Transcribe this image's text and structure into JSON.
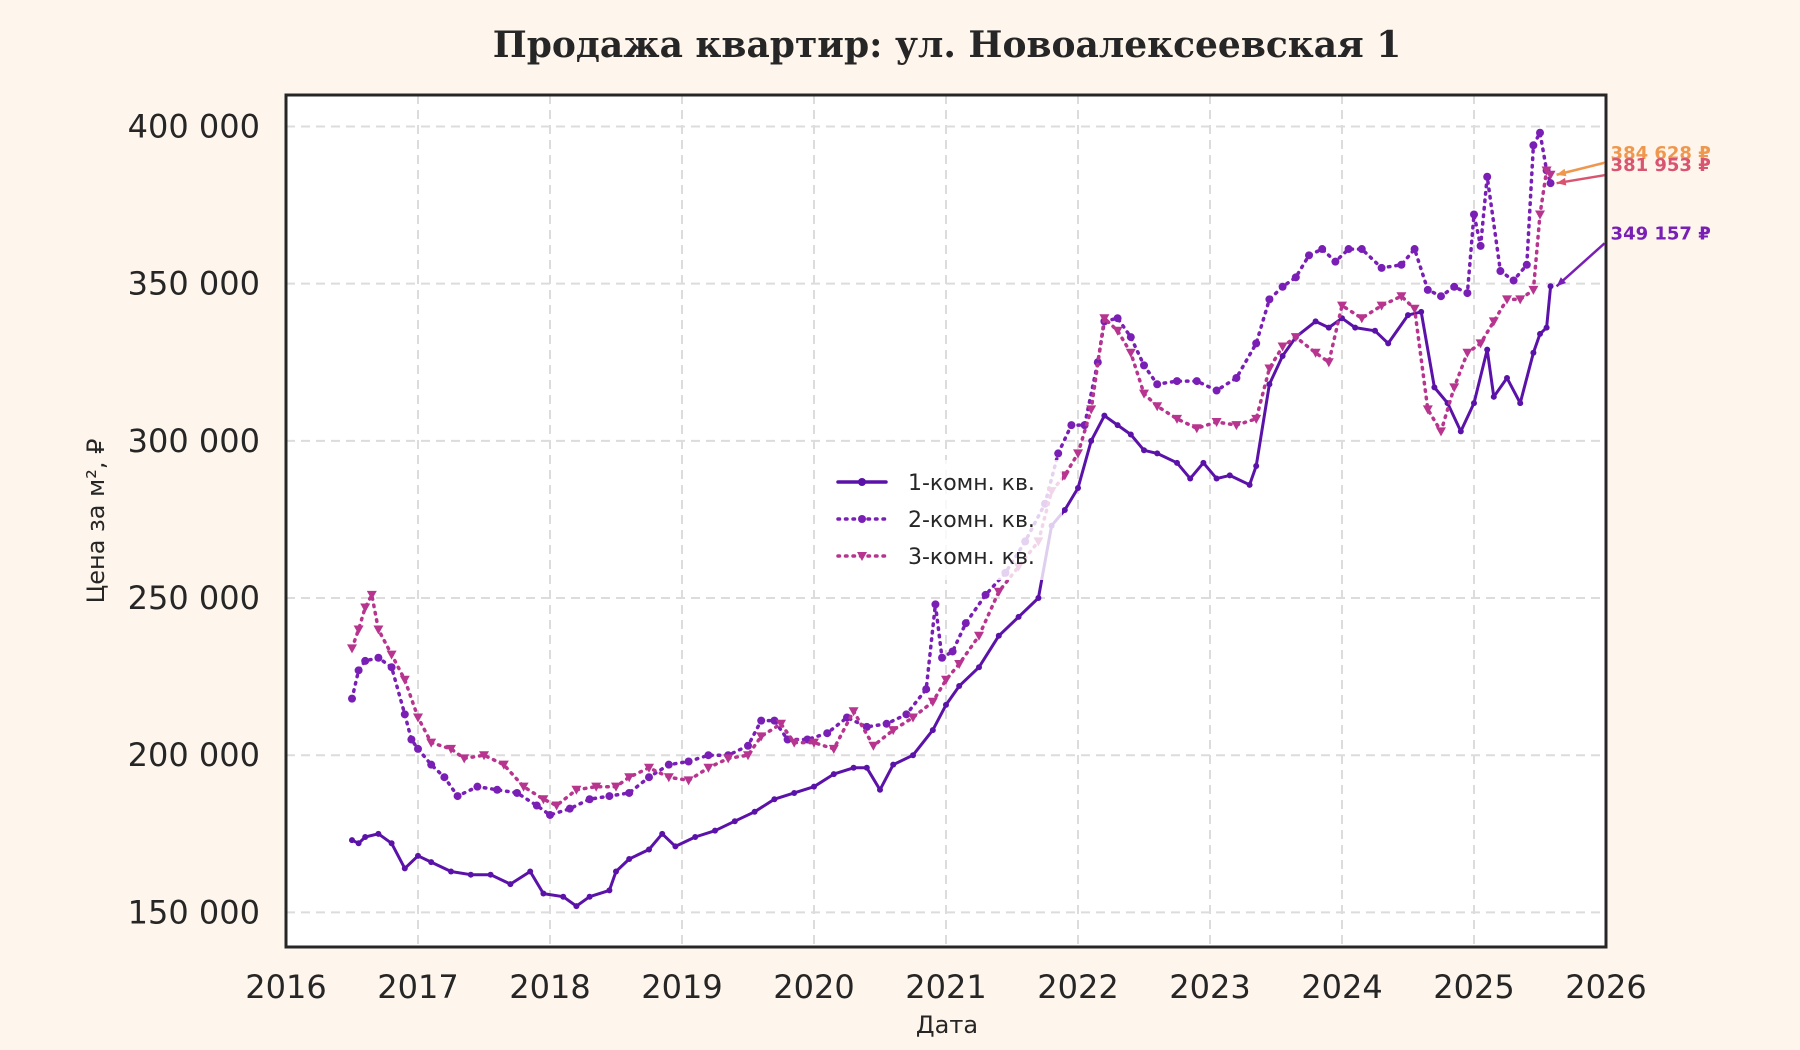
{
  "chart_data": {
    "type": "line",
    "title": "Продажа квартир: ул. Новоалексеевская 1",
    "xlabel": "Дата",
    "ylabel": "Цена за м², ₽",
    "xlim": [
      2016,
      2026
    ],
    "ylim": [
      139000,
      410000
    ],
    "x_ticks": [
      2016,
      2017,
      2018,
      2019,
      2020,
      2021,
      2022,
      2023,
      2024,
      2025,
      2026
    ],
    "x_tick_labels": [
      "2016",
      "2017",
      "2018",
      "2019",
      "2020",
      "2021",
      "2022",
      "2023",
      "2024",
      "2025",
      "2026"
    ],
    "y_ticks": [
      150000,
      200000,
      250000,
      300000,
      350000,
      400000
    ],
    "y_tick_labels": [
      "150 000",
      "200 000",
      "250 000",
      "300 000",
      "350 000",
      "400 000"
    ],
    "grid": true,
    "legend_position": "center",
    "series": [
      {
        "name": "1-комн. кв.",
        "color": "#5b12a8",
        "line_style": "solid",
        "marker": "circle",
        "points": [
          [
            2016.5,
            173000
          ],
          [
            2016.55,
            172000
          ],
          [
            2016.6,
            174000
          ],
          [
            2016.7,
            175000
          ],
          [
            2016.8,
            172000
          ],
          [
            2016.9,
            164000
          ],
          [
            2017.0,
            168000
          ],
          [
            2017.1,
            166000
          ],
          [
            2017.25,
            163000
          ],
          [
            2017.4,
            162000
          ],
          [
            2017.55,
            162000
          ],
          [
            2017.7,
            159000
          ],
          [
            2017.85,
            163000
          ],
          [
            2017.95,
            156000
          ],
          [
            2018.1,
            155000
          ],
          [
            2018.2,
            152000
          ],
          [
            2018.3,
            155000
          ],
          [
            2018.45,
            157000
          ],
          [
            2018.5,
            163000
          ],
          [
            2018.6,
            167000
          ],
          [
            2018.75,
            170000
          ],
          [
            2018.85,
            175000
          ],
          [
            2018.95,
            171000
          ],
          [
            2019.1,
            174000
          ],
          [
            2019.25,
            176000
          ],
          [
            2019.4,
            179000
          ],
          [
            2019.55,
            182000
          ],
          [
            2019.7,
            186000
          ],
          [
            2019.85,
            188000
          ],
          [
            2020.0,
            190000
          ],
          [
            2020.15,
            194000
          ],
          [
            2020.3,
            196000
          ],
          [
            2020.4,
            196000
          ],
          [
            2020.5,
            189000
          ],
          [
            2020.6,
            197000
          ],
          [
            2020.75,
            200000
          ],
          [
            2020.9,
            208000
          ],
          [
            2021.0,
            216000
          ],
          [
            2021.1,
            222000
          ],
          [
            2021.25,
            228000
          ],
          [
            2021.4,
            238000
          ],
          [
            2021.55,
            244000
          ],
          [
            2021.7,
            250000
          ],
          [
            2021.8,
            273000
          ],
          [
            2021.9,
            278000
          ],
          [
            2022.0,
            285000
          ],
          [
            2022.1,
            300000
          ],
          [
            2022.2,
            308000
          ],
          [
            2022.3,
            305000
          ],
          [
            2022.4,
            302000
          ],
          [
            2022.5,
            297000
          ],
          [
            2022.6,
            296000
          ],
          [
            2022.75,
            293000
          ],
          [
            2022.85,
            288000
          ],
          [
            2022.95,
            293000
          ],
          [
            2023.05,
            288000
          ],
          [
            2023.15,
            289000
          ],
          [
            2023.3,
            286000
          ],
          [
            2023.35,
            292000
          ],
          [
            2023.45,
            318000
          ],
          [
            2023.55,
            327000
          ],
          [
            2023.65,
            333000
          ],
          [
            2023.8,
            338000
          ],
          [
            2023.9,
            336000
          ],
          [
            2024.0,
            339000
          ],
          [
            2024.1,
            336000
          ],
          [
            2024.25,
            335000
          ],
          [
            2024.35,
            331000
          ],
          [
            2024.5,
            340000
          ],
          [
            2024.6,
            341000
          ],
          [
            2024.7,
            317000
          ],
          [
            2024.8,
            312000
          ],
          [
            2024.9,
            303000
          ],
          [
            2025.0,
            312000
          ],
          [
            2025.1,
            329000
          ],
          [
            2025.15,
            314000
          ],
          [
            2025.25,
            320000
          ],
          [
            2025.35,
            312000
          ],
          [
            2025.45,
            328000
          ],
          [
            2025.5,
            334000
          ],
          [
            2025.55,
            336000
          ],
          [
            2025.58,
            349157
          ]
        ]
      },
      {
        "name": "2-комн. кв.",
        "color": "#7a1fb5",
        "line_style": "dotted",
        "marker": "circle",
        "points": [
          [
            2016.5,
            218000
          ],
          [
            2016.55,
            227000
          ],
          [
            2016.6,
            230000
          ],
          [
            2016.7,
            231000
          ],
          [
            2016.8,
            228000
          ],
          [
            2016.9,
            213000
          ],
          [
            2016.95,
            205000
          ],
          [
            2017.0,
            202000
          ],
          [
            2017.1,
            197000
          ],
          [
            2017.2,
            193000
          ],
          [
            2017.3,
            187000
          ],
          [
            2017.45,
            190000
          ],
          [
            2017.6,
            189000
          ],
          [
            2017.75,
            188000
          ],
          [
            2017.9,
            184000
          ],
          [
            2018.0,
            181000
          ],
          [
            2018.15,
            183000
          ],
          [
            2018.3,
            186000
          ],
          [
            2018.45,
            187000
          ],
          [
            2018.6,
            188000
          ],
          [
            2018.75,
            193000
          ],
          [
            2018.9,
            197000
          ],
          [
            2019.05,
            198000
          ],
          [
            2019.2,
            200000
          ],
          [
            2019.35,
            200000
          ],
          [
            2019.5,
            203000
          ],
          [
            2019.6,
            211000
          ],
          [
            2019.7,
            211000
          ],
          [
            2019.8,
            205000
          ],
          [
            2019.95,
            205000
          ],
          [
            2020.1,
            207000
          ],
          [
            2020.25,
            212000
          ],
          [
            2020.4,
            209000
          ],
          [
            2020.55,
            210000
          ],
          [
            2020.7,
            213000
          ],
          [
            2020.85,
            221000
          ],
          [
            2020.92,
            248000
          ],
          [
            2020.97,
            231000
          ],
          [
            2021.05,
            233000
          ],
          [
            2021.15,
            242000
          ],
          [
            2021.3,
            251000
          ],
          [
            2021.45,
            258000
          ],
          [
            2021.6,
            268000
          ],
          [
            2021.75,
            280000
          ],
          [
            2021.85,
            296000
          ],
          [
            2021.95,
            305000
          ],
          [
            2022.05,
            305000
          ],
          [
            2022.15,
            325000
          ],
          [
            2022.2,
            338000
          ],
          [
            2022.3,
            339000
          ],
          [
            2022.4,
            333000
          ],
          [
            2022.5,
            324000
          ],
          [
            2022.6,
            318000
          ],
          [
            2022.75,
            319000
          ],
          [
            2022.9,
            319000
          ],
          [
            2023.05,
            316000
          ],
          [
            2023.2,
            320000
          ],
          [
            2023.35,
            331000
          ],
          [
            2023.45,
            345000
          ],
          [
            2023.55,
            349000
          ],
          [
            2023.65,
            352000
          ],
          [
            2023.75,
            359000
          ],
          [
            2023.85,
            361000
          ],
          [
            2023.95,
            357000
          ],
          [
            2024.05,
            361000
          ],
          [
            2024.15,
            361000
          ],
          [
            2024.3,
            355000
          ],
          [
            2024.45,
            356000
          ],
          [
            2024.55,
            361000
          ],
          [
            2024.65,
            348000
          ],
          [
            2024.75,
            346000
          ],
          [
            2024.85,
            349000
          ],
          [
            2024.95,
            347000
          ],
          [
            2025.0,
            372000
          ],
          [
            2025.05,
            362000
          ],
          [
            2025.1,
            384000
          ],
          [
            2025.2,
            354000
          ],
          [
            2025.3,
            351000
          ],
          [
            2025.4,
            356000
          ],
          [
            2025.45,
            394000
          ],
          [
            2025.5,
            398000
          ],
          [
            2025.55,
            386000
          ],
          [
            2025.58,
            381953
          ]
        ]
      },
      {
        "name": "3-комн. кв.",
        "color": "#b8358f",
        "line_style": "dotted",
        "marker": "triangle-down",
        "points": [
          [
            2016.5,
            234000
          ],
          [
            2016.55,
            240000
          ],
          [
            2016.6,
            247000
          ],
          [
            2016.65,
            251000
          ],
          [
            2016.7,
            240000
          ],
          [
            2016.8,
            232000
          ],
          [
            2016.9,
            224000
          ],
          [
            2017.0,
            212000
          ],
          [
            2017.1,
            204000
          ],
          [
            2017.25,
            202000
          ],
          [
            2017.35,
            199000
          ],
          [
            2017.5,
            200000
          ],
          [
            2017.65,
            197000
          ],
          [
            2017.8,
            190000
          ],
          [
            2017.95,
            186000
          ],
          [
            2018.05,
            184000
          ],
          [
            2018.2,
            189000
          ],
          [
            2018.35,
            190000
          ],
          [
            2018.5,
            190000
          ],
          [
            2018.6,
            193000
          ],
          [
            2018.75,
            196000
          ],
          [
            2018.9,
            193000
          ],
          [
            2019.05,
            192000
          ],
          [
            2019.2,
            196000
          ],
          [
            2019.35,
            199000
          ],
          [
            2019.5,
            200000
          ],
          [
            2019.6,
            206000
          ],
          [
            2019.75,
            210000
          ],
          [
            2019.85,
            204000
          ],
          [
            2020.0,
            204000
          ],
          [
            2020.15,
            202000
          ],
          [
            2020.3,
            214000
          ],
          [
            2020.45,
            203000
          ],
          [
            2020.6,
            208000
          ],
          [
            2020.75,
            212000
          ],
          [
            2020.9,
            217000
          ],
          [
            2021.0,
            224000
          ],
          [
            2021.1,
            229000
          ],
          [
            2021.25,
            238000
          ],
          [
            2021.4,
            252000
          ],
          [
            2021.55,
            260000
          ],
          [
            2021.7,
            268000
          ],
          [
            2021.8,
            284000
          ],
          [
            2021.9,
            289000
          ],
          [
            2022.0,
            296000
          ],
          [
            2022.1,
            310000
          ],
          [
            2022.2,
            339000
          ],
          [
            2022.3,
            335000
          ],
          [
            2022.4,
            328000
          ],
          [
            2022.5,
            315000
          ],
          [
            2022.6,
            311000
          ],
          [
            2022.75,
            307000
          ],
          [
            2022.9,
            304000
          ],
          [
            2023.05,
            306000
          ],
          [
            2023.2,
            305000
          ],
          [
            2023.35,
            307000
          ],
          [
            2023.45,
            323000
          ],
          [
            2023.55,
            330000
          ],
          [
            2023.65,
            333000
          ],
          [
            2023.8,
            328000
          ],
          [
            2023.9,
            325000
          ],
          [
            2024.0,
            343000
          ],
          [
            2024.15,
            339000
          ],
          [
            2024.3,
            343000
          ],
          [
            2024.45,
            346000
          ],
          [
            2024.55,
            342000
          ],
          [
            2024.65,
            310000
          ],
          [
            2024.75,
            303000
          ],
          [
            2024.85,
            317000
          ],
          [
            2024.95,
            328000
          ],
          [
            2025.05,
            331000
          ],
          [
            2025.15,
            338000
          ],
          [
            2025.25,
            345000
          ],
          [
            2025.35,
            345000
          ],
          [
            2025.45,
            348000
          ],
          [
            2025.5,
            372000
          ],
          [
            2025.55,
            386000
          ],
          [
            2025.58,
            384628
          ]
        ]
      }
    ],
    "annotations": [
      {
        "text": "384 628 ₽",
        "color": "#f0974e",
        "x": 2025.58,
        "y": 384628
      },
      {
        "text": "381 953 ₽",
        "color": "#d9546f",
        "x": 2025.58,
        "y": 381953
      },
      {
        "text": "349 157 ₽",
        "color": "#7a1fb5",
        "x": 2025.58,
        "y": 349157
      }
    ]
  }
}
